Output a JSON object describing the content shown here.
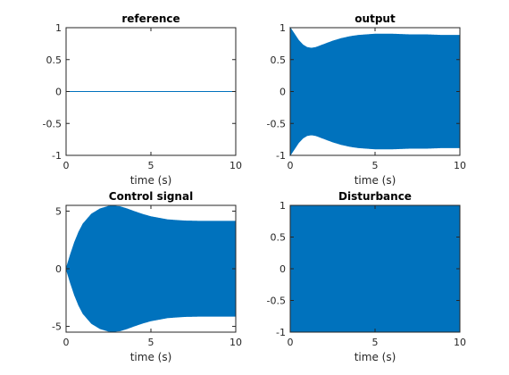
{
  "chart_data": [
    {
      "type": "line",
      "title": "reference",
      "xlabel": "time (s)",
      "ylabel": "",
      "xlim": [
        0,
        10
      ],
      "ylim": [
        -1,
        1
      ],
      "xticks": [
        0,
        5,
        10
      ],
      "xtick_labels": [
        "0",
        "5",
        "10"
      ],
      "yticks": [
        1,
        0.5,
        0,
        -0.5,
        -1
      ],
      "ytick_labels": [
        "1",
        "0.5",
        "0",
        "-0.5",
        "-1"
      ],
      "grid": false,
      "series": [
        {
          "kind": "line",
          "color": "#0072BD",
          "x": [
            0,
            10
          ],
          "y": [
            0,
            0
          ]
        }
      ]
    },
    {
      "type": "line",
      "title": "output",
      "xlabel": "time (s)",
      "ylabel": "",
      "xlim": [
        0,
        10
      ],
      "ylim": [
        -1,
        1
      ],
      "xticks": [
        0,
        5,
        10
      ],
      "xtick_labels": [
        "0",
        "5",
        "10"
      ],
      "yticks": [
        1,
        0.5,
        0,
        -0.5,
        -1
      ],
      "ytick_labels": [
        "1",
        "0.5",
        "0",
        "-0.5",
        "-1"
      ],
      "grid": false,
      "series": [
        {
          "kind": "envelope",
          "color": "#0072BD",
          "note_oscillation": "dense high-frequency oscillation filling the envelope",
          "x": [
            0,
            0.25,
            0.5,
            0.75,
            1.0,
            1.25,
            1.5,
            2.0,
            2.5,
            3.0,
            3.5,
            4.0,
            5.0,
            6.0,
            7.0,
            8.0,
            9.0,
            10.0
          ],
          "upper": [
            1.0,
            0.9,
            0.8,
            0.73,
            0.69,
            0.68,
            0.69,
            0.74,
            0.79,
            0.83,
            0.86,
            0.88,
            0.9,
            0.9,
            0.89,
            0.89,
            0.88,
            0.88
          ],
          "lower": [
            -1.0,
            -0.9,
            -0.8,
            -0.73,
            -0.69,
            -0.68,
            -0.69,
            -0.74,
            -0.79,
            -0.83,
            -0.86,
            -0.88,
            -0.9,
            -0.9,
            -0.89,
            -0.89,
            -0.88,
            -0.88
          ]
        }
      ]
    },
    {
      "type": "line",
      "title": "Control signal",
      "xlabel": "time (s)",
      "ylabel": "",
      "xlim": [
        0,
        10
      ],
      "ylim": [
        -5.5,
        5.5
      ],
      "xticks": [
        0,
        5,
        10
      ],
      "xtick_labels": [
        "0",
        "5",
        "10"
      ],
      "yticks": [
        5,
        0,
        -5
      ],
      "ytick_labels": [
        "5",
        "0",
        "-5"
      ],
      "grid": false,
      "series": [
        {
          "kind": "envelope",
          "color": "#0072BD",
          "x": [
            0,
            0.25,
            0.5,
            0.75,
            1.0,
            1.5,
            2.0,
            2.5,
            2.8,
            3.2,
            3.6,
            4.0,
            4.5,
            5.0,
            6.0,
            7.0,
            8.0,
            9.0,
            10.0
          ],
          "upper": [
            0.0,
            1.2,
            2.3,
            3.2,
            3.9,
            4.75,
            5.2,
            5.42,
            5.45,
            5.38,
            5.2,
            4.98,
            4.73,
            4.52,
            4.25,
            4.15,
            4.12,
            4.12,
            4.12
          ],
          "lower": [
            0.0,
            -1.2,
            -2.3,
            -3.2,
            -3.9,
            -4.75,
            -5.2,
            -5.42,
            -5.45,
            -5.38,
            -5.2,
            -4.98,
            -4.73,
            -4.52,
            -4.25,
            -4.15,
            -4.12,
            -4.12,
            -4.12
          ]
        }
      ]
    },
    {
      "type": "line",
      "title": "Disturbance",
      "xlabel": "time (s)",
      "ylabel": "",
      "xlim": [
        0,
        10
      ],
      "ylim": [
        -1,
        1
      ],
      "xticks": [
        0,
        5,
        10
      ],
      "xtick_labels": [
        "0",
        "5",
        "10"
      ],
      "yticks": [
        1,
        0.5,
        0,
        -0.5,
        -1
      ],
      "ytick_labels": [
        "1",
        "0.5",
        "0",
        "-0.5",
        "-1"
      ],
      "grid": false,
      "series": [
        {
          "kind": "envelope",
          "color": "#0072BD",
          "x": [
            0,
            10
          ],
          "upper": [
            1,
            1
          ],
          "lower": [
            -1,
            -1
          ]
        }
      ]
    }
  ]
}
